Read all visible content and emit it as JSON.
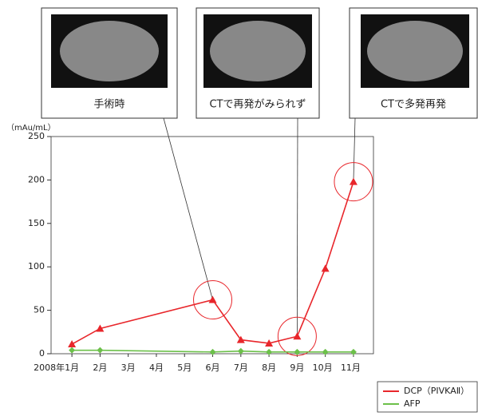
{
  "chart_data": {
    "type": "line",
    "y_unit": "（mAu/mL）",
    "annotations": [
      {
        "text": "手術時"
      },
      {
        "text": "CTで再発がみられず"
      },
      {
        "text": "CTで多発再発"
      }
    ],
    "x": [
      1,
      2,
      6,
      7,
      8,
      9,
      10,
      11
    ],
    "xlim": [
      0.26,
      11.71
    ],
    "xticks": [
      {
        "value": 1,
        "label": "2008年1月"
      },
      {
        "value": 2,
        "label": "2月"
      },
      {
        "value": 3,
        "label": "3月"
      },
      {
        "value": 4,
        "label": "4月"
      },
      {
        "value": 5,
        "label": "5月"
      },
      {
        "value": 6,
        "label": "6月"
      },
      {
        "value": 7,
        "label": "7月"
      },
      {
        "value": 8,
        "label": "8月"
      },
      {
        "value": 9,
        "label": "9月"
      },
      {
        "value": 10,
        "label": "10月"
      },
      {
        "value": 11,
        "label": "11月"
      }
    ],
    "ylim": [
      0,
      250
    ],
    "yticks": [
      0,
      50,
      100,
      150,
      200,
      250
    ],
    "series": [
      {
        "name": "DCP（PIVKAⅡ）",
        "color": "#e8262b",
        "marker": "triangle",
        "values": [
          11,
          29,
          62,
          16,
          12,
          20,
          98,
          198
        ]
      },
      {
        "name": "AFP",
        "color": "#6cc04a",
        "marker": "diamond",
        "values": [
          4,
          4,
          2,
          3,
          2,
          2,
          2,
          2
        ]
      }
    ],
    "legend": "bottom-right"
  }
}
